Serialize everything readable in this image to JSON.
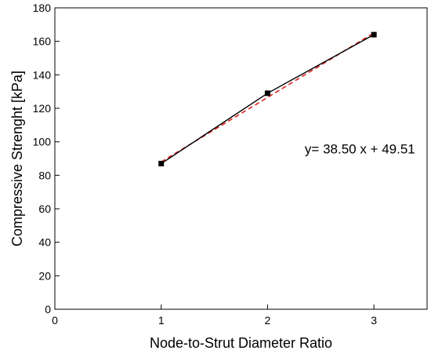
{
  "chart_data": {
    "type": "line",
    "title": "",
    "xlabel": "Node-to-Strut Diameter Ratio",
    "ylabel": "Compressive Strenght [kPa]",
    "xlim": [
      0,
      3.5
    ],
    "ylim": [
      0,
      180
    ],
    "x_ticks": [
      0,
      1,
      2,
      3
    ],
    "y_ticks": [
      0,
      20,
      40,
      60,
      80,
      100,
      120,
      140,
      160,
      180
    ],
    "grid": false,
    "legend": "none",
    "series": [
      {
        "kind": "measured",
        "x": [
          1,
          2,
          3
        ],
        "y": [
          87,
          129,
          164
        ],
        "color": "#000000",
        "marker": "square",
        "linestyle": "solid"
      },
      {
        "kind": "linear-fit",
        "slope": 38.5,
        "intercept": 49.51,
        "x_range": [
          1,
          3
        ],
        "color": "#e0201b",
        "linestyle": "dashed"
      }
    ],
    "annotations": [
      {
        "text": "y= 38.50 x + 49.51",
        "x": 2.35,
        "y": 93
      }
    ]
  }
}
